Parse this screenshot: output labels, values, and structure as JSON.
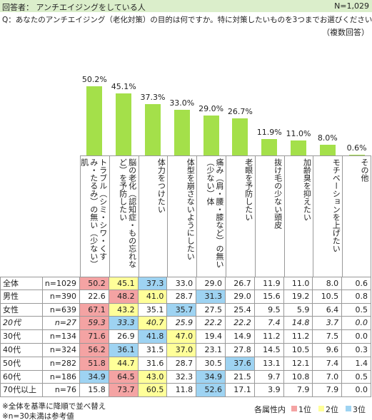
{
  "header": {
    "respondents": "回答者： アンチエイジングをしている人",
    "n_total": "N=1,029",
    "question": "Q：あなたのアンチエイジング（老化対策）の目的は何ですか。特に対策したいものを3つまでお選びください。",
    "answer_type": "（複数回答）"
  },
  "chart_data": {
    "type": "bar",
    "color": "#a4e04a",
    "categories": [
      "トラブル（シミ・シワ・くすみ・たるみ）の無い（少ない）肌",
      "脳の老化（認知症・もの忘れなど）を予防したい",
      "体力をつけたい",
      "体型を崩さないようにしたい",
      "痛み（肩・腰・膝など）の無い（少ない）体",
      "老眼を予防したい",
      "抜け毛の少ない頭皮",
      "加齢臭を抑えたい",
      "モチベーションを上げたい",
      "その他"
    ],
    "values": [
      50.2,
      45.1,
      37.3,
      33.0,
      29.0,
      26.7,
      11.9,
      11.0,
      8.0,
      0.6
    ],
    "value_labels": [
      "50.2%",
      "45.1%",
      "37.3%",
      "33.0%",
      "29.0%",
      "26.7%",
      "11.9%",
      "11.0%",
      "8.0%",
      "0.6%"
    ]
  },
  "table": {
    "rows": [
      {
        "label": "全体",
        "n": "n=1029",
        "values": [
          "50.2",
          "45.1",
          "37.3",
          "33.0",
          "29.0",
          "26.7",
          "11.9",
          "11.0",
          "8.0",
          "0.6"
        ],
        "reference": false
      },
      {
        "label": "男性",
        "n": "n=390",
        "values": [
          "22.6",
          "48.2",
          "41.0",
          "28.7",
          "31.3",
          "29.0",
          "15.6",
          "19.2",
          "10.5",
          "0.8"
        ],
        "reference": false
      },
      {
        "label": "女性",
        "n": "n=639",
        "values": [
          "67.1",
          "43.2",
          "35.1",
          "35.7",
          "27.5",
          "25.4",
          "9.5",
          "5.9",
          "6.4",
          "0.5"
        ],
        "reference": false
      },
      {
        "label": "20代",
        "n": "n=27",
        "values": [
          "59.3",
          "33.3",
          "40.7",
          "25.9",
          "22.2",
          "22.2",
          "7.4",
          "14.8",
          "3.7",
          "0.0"
        ],
        "reference": true
      },
      {
        "label": "30代",
        "n": "n=134",
        "values": [
          "71.6",
          "26.9",
          "41.8",
          "47.0",
          "19.4",
          "14.9",
          "11.2",
          "11.2",
          "7.5",
          "0.0"
        ],
        "reference": false
      },
      {
        "label": "40代",
        "n": "n=324",
        "values": [
          "56.2",
          "36.1",
          "31.5",
          "37.0",
          "23.1",
          "27.8",
          "14.5",
          "10.5",
          "9.6",
          "0.3"
        ],
        "reference": false
      },
      {
        "label": "50代",
        "n": "n=282",
        "values": [
          "51.8",
          "44.7",
          "31.6",
          "28.7",
          "30.5",
          "37.6",
          "13.1",
          "12.1",
          "7.4",
          "1.4"
        ],
        "reference": false
      },
      {
        "label": "60代",
        "n": "n=186",
        "values": [
          "34.9",
          "64.5",
          "43.0",
          "32.3",
          "34.9",
          "21.5",
          "9.7",
          "10.8",
          "7.0",
          "0.5"
        ],
        "reference": false
      },
      {
        "label": "70代以上",
        "n": "n=76",
        "values": [
          "15.8",
          "73.7",
          "60.5",
          "11.8",
          "52.6",
          "17.1",
          "3.9",
          "7.9",
          "7.9",
          "0.0"
        ],
        "reference": false
      }
    ]
  },
  "legend": {
    "title": "各属性内",
    "ranks": [
      {
        "label": "1位",
        "color": "#f4a3a3"
      },
      {
        "label": "2位",
        "color": "#ffff99"
      },
      {
        "label": "3位",
        "color": "#9ed3f2"
      }
    ]
  },
  "notes": [
    "※全体を基準に降順で並べ替え",
    "※n=30未満は参考値"
  ]
}
